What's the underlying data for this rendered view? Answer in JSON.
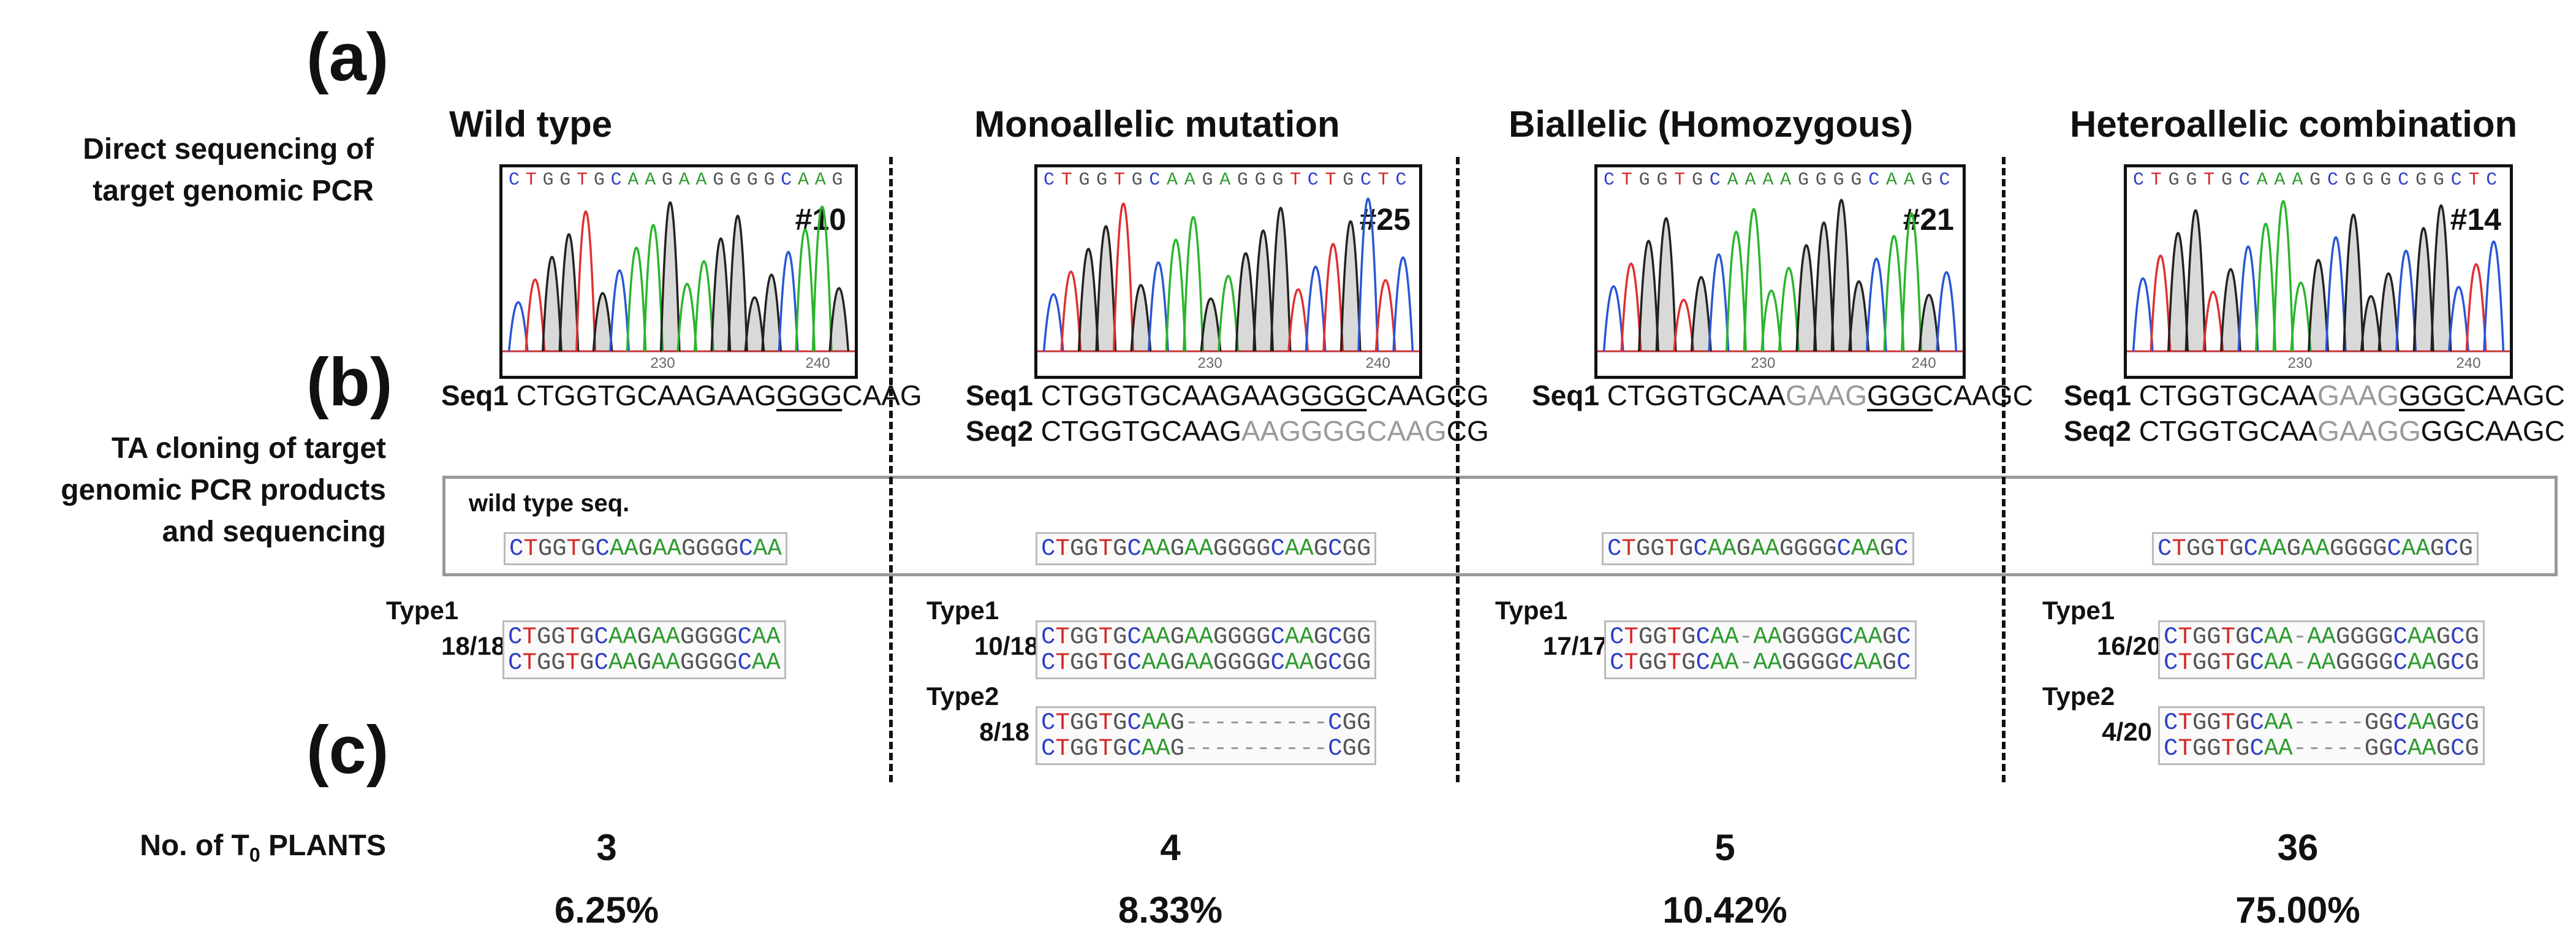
{
  "panel_labels": {
    "a": "(a)",
    "b": "(b)",
    "c": "(c)"
  },
  "row_labels": {
    "direct_seq_1": "Direct sequencing of",
    "direct_seq_2": "target genomic PCR",
    "ta_1": "TA cloning of target",
    "ta_2": "genomic PCR products",
    "ta_3": "and sequencing",
    "plants_prefix": "No. of T",
    "plants_sub": "0",
    "plants_suffix": " PLANTS"
  },
  "wild_type_box_label": "wild type seq.",
  "columns": [
    {
      "title": "Wild type",
      "chrom_tag": "#10",
      "chrom_header": "CTGGTGCAAGAAGGGGCAAG",
      "chrom_ticks": [
        "230",
        "240"
      ],
      "seq_lines": [
        {
          "label": "Seq1",
          "pre": "CTGGTGCAAGAAG",
          "mid": "GGG",
          "post": "CAAG",
          "mid_gray": false
        }
      ],
      "wt_seq": "CTGGTGCAAGAAGGGGCAA",
      "types": [
        {
          "label": "Type1",
          "count": "18/18",
          "rows": [
            "CTGGTGCAAGAAGGGGCAA",
            "CTGGTGCAAGAAGGGGCAA"
          ]
        }
      ],
      "plants": "3",
      "percent": "6.25%"
    },
    {
      "title": "Monoallelic mutation",
      "chrom_tag": "#25",
      "chrom_header": "CTGGTGCAAGAGGGTCTGCTC",
      "chrom_ticks": [
        "230",
        "240"
      ],
      "seq_lines": [
        {
          "label": "Seq1",
          "pre": "CTGGTGCAAGAAG",
          "mid": "GGG",
          "post": "CAAGCG",
          "mid_gray": false
        },
        {
          "label": "Seq2",
          "pre": "CTGGTGCAAG",
          "mid": "AAGGGGCAAG",
          "post": "CG",
          "mid_gray": true
        }
      ],
      "wt_seq": "CTGGTGCAAGAAGGGGCAAGCGG",
      "types": [
        {
          "label": "Type1",
          "count": "10/18",
          "rows": [
            "CTGGTGCAAGAAGGGGCAAGCGG",
            "CTGGTGCAAGAAGGGGCAAGCGG"
          ]
        },
        {
          "label": "Type2",
          "count": "8/18",
          "rows": [
            "CTGGTGCAAG----------CGG",
            "CTGGTGCAAG----------CGG"
          ]
        }
      ],
      "plants": "4",
      "percent": "8.33%"
    },
    {
      "title": "Biallelic (Homozygous)",
      "chrom_tag": "#21",
      "chrom_header": "CTGGTGCAAAAGGGGCAAGC",
      "chrom_ticks": [
        "230",
        "240"
      ],
      "seq_lines": [
        {
          "label": "Seq1",
          "pre": "CTGGTGCAA",
          "mid": "G",
          "post": "AAG",
          "mid_gray": true,
          "tail_ul": "GGG",
          "tail": "CAAGC"
        }
      ],
      "wt_seq": "CTGGTGCAAGAAGGGGCAAGC",
      "types": [
        {
          "label": "Type1",
          "count": "17/17",
          "rows": [
            "CTGGTGCAA-AAGGGGCAAGC",
            "CTGGTGCAA-AAGGGGCAAGC"
          ]
        }
      ],
      "plants": "5",
      "percent": "10.42%"
    },
    {
      "title": "Heteroallelic combination",
      "chrom_tag": "#14",
      "chrom_header": "CTGGTGCAAAGCGGGCGGCTC",
      "chrom_ticks": [
        "230",
        "240"
      ],
      "seq_lines": [
        {
          "label": "Seq1",
          "pre": "CTGGTGCAA",
          "mid": "G",
          "post": "AAG",
          "mid_gray": true,
          "tail_ul": "GGG",
          "tail": "CAAGC"
        },
        {
          "label": "Seq2",
          "pre": "CTGGTGCAA",
          "mid": "GAAGG",
          "post": "GGCAAGC",
          "mid_gray": true
        }
      ],
      "wt_seq": "CTGGTGCAAGAAGGGGCAAGCG",
      "types": [
        {
          "label": "Type1",
          "count": "16/20",
          "rows": [
            "CTGGTGCAA-AAGGGGCAAGCG",
            "CTGGTGCAA-AAGGGGCAAGCG"
          ]
        },
        {
          "label": "Type2",
          "count": "4/20",
          "rows": [
            "CTGGTGCAA-----GGCAAGCG",
            "CTGGTGCAA-----GGCAAGCG"
          ]
        }
      ],
      "plants": "36",
      "percent": "75.00%"
    }
  ],
  "colors": {
    "A": "#2e9b2e",
    "C": "#2f3fc7",
    "G": "#333333",
    "T": "#d62828"
  }
}
